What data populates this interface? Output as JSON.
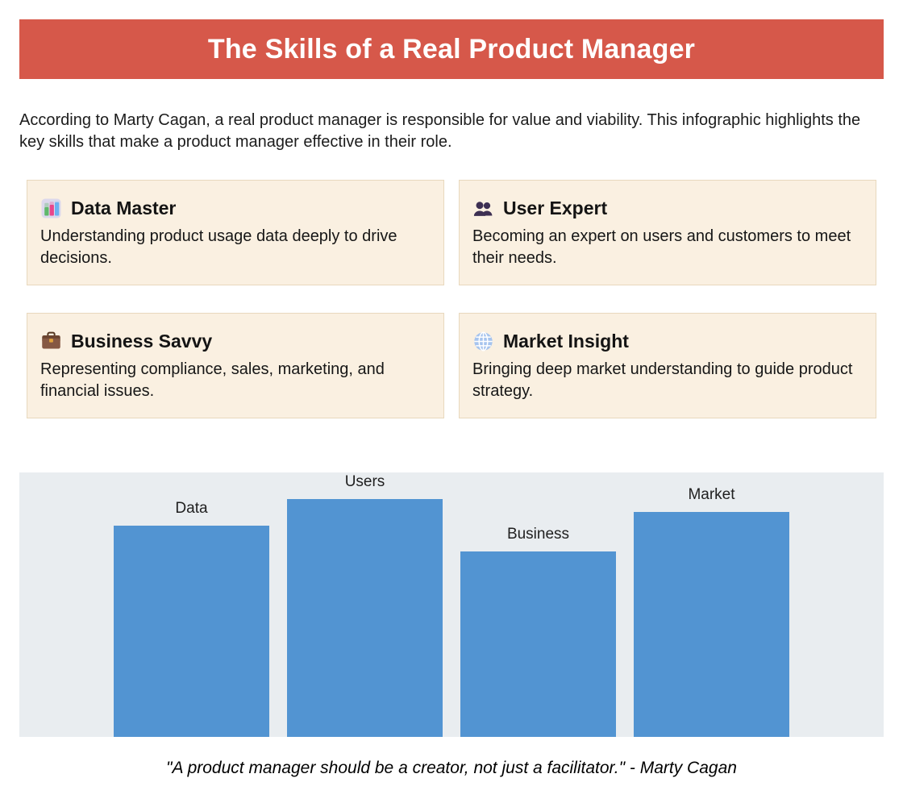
{
  "page": {
    "title": "The Skills of a Real Product Manager",
    "intro": "According to Marty Cagan, a real product manager is responsible for value and viability. This infographic highlights the key skills that make a product manager effective in their role.",
    "quote": "\"A product manager should be a creator, not just a facilitator.\" - Marty Cagan"
  },
  "colors": {
    "header_bg": "#d6584a",
    "header_text": "#ffffff",
    "card_bg": "#faf0e1",
    "card_border": "#e8d8bd",
    "chart_bg": "#e9edf0",
    "bar_fill": "#5294d2"
  },
  "cards": [
    {
      "icon": "bar-chart-icon",
      "title": "Data Master",
      "description": "Understanding product usage data deeply to drive decisions."
    },
    {
      "icon": "users-icon",
      "title": "User Expert",
      "description": "Becoming an expert on users and customers to meet their needs."
    },
    {
      "icon": "briefcase-icon",
      "title": "Business Savvy",
      "description": "Representing compliance, sales, marketing, and financial issues."
    },
    {
      "icon": "globe-icon",
      "title": "Market Insight",
      "description": "Bringing deep market understanding to guide product strategy."
    }
  ],
  "chart_data": {
    "type": "bar",
    "categories": [
      "Data",
      "Users",
      "Business",
      "Market"
    ],
    "values": [
      80,
      90,
      70,
      85
    ],
    "title": "",
    "xlabel": "",
    "ylabel": "",
    "ylim": [
      0,
      100
    ],
    "bar_color": "#5294d2",
    "plot_background": "#e9edf0",
    "value_labels": "category names above bars",
    "axes_visible": false,
    "grid": false,
    "legend": "none"
  }
}
